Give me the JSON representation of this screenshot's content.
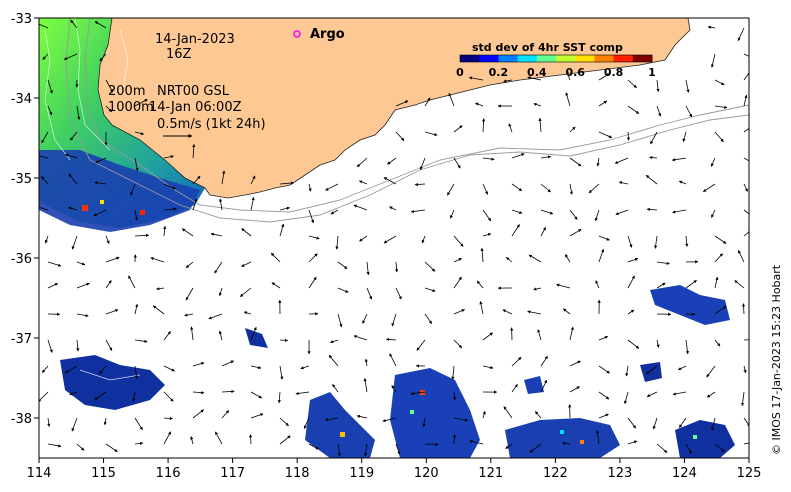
{
  "map": {
    "date_label": "14-Jan-2023",
    "hour_label": "16Z",
    "legend_argo": "Argo",
    "legend_std_title": "std dev of 4hr SST comp",
    "colorbar_ticks": [
      "0",
      "0.2",
      "0.4",
      "0.6",
      "0.8",
      "1"
    ],
    "colorbar_colors": [
      "#00007f",
      "#0000ff",
      "#0080ff",
      "#00e0ff",
      "#60ff90",
      "#c0ff30",
      "#ffe000",
      "#ff8000",
      "#ff2000",
      "#800000"
    ],
    "contour_200": "200m",
    "contour_1000": "1000m",
    "product_label": "NRT00 GSL",
    "current_time": "14-Jan 06:00Z",
    "scale_arrow_label": "0.5m/s (1kt 24h)",
    "credit": "© IMOS 17-Jan-2023 15:23 Hobart",
    "x_ticks": [
      "114",
      "115",
      "116",
      "117",
      "118",
      "119",
      "120",
      "121",
      "122",
      "123",
      "124",
      "125"
    ],
    "y_ticks": [
      "-33",
      "-34",
      "-35",
      "-36",
      "-37",
      "-38"
    ],
    "lon_range": [
      114,
      125
    ],
    "lat_range": [
      -38.5,
      -33
    ],
    "land_color": "#fdc894",
    "argo_marker_color": "#ff00ff"
  }
}
